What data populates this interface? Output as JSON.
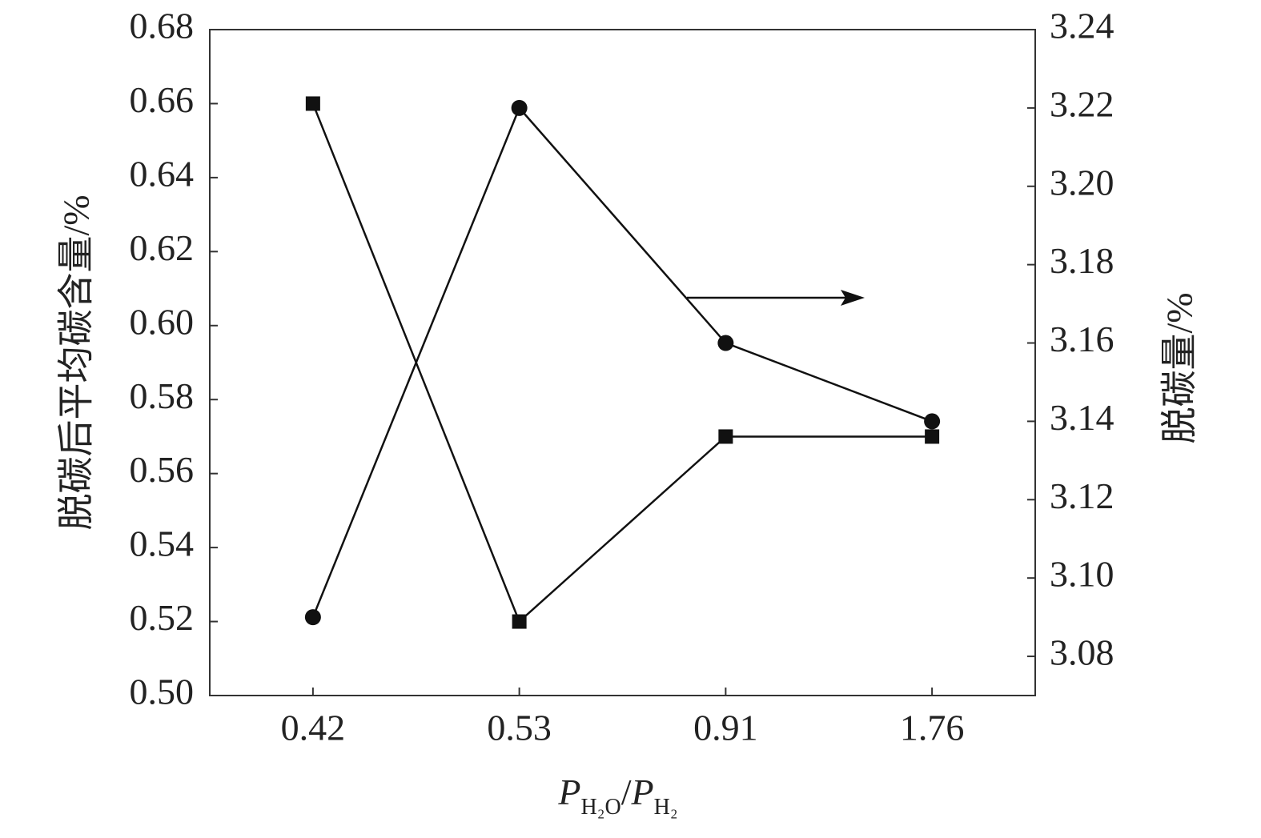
{
  "chart_data": {
    "type": "line",
    "categories": [
      "0.42",
      "0.53",
      "0.91",
      "1.76"
    ],
    "xlabel": [
      "P",
      "H₂O",
      "/",
      "P",
      "H₂"
    ],
    "ylabel": "脱碳后平均碳含量/%",
    "y2label": "脱碳量/%",
    "ylim": [
      0.5,
      0.68
    ],
    "yticks": [
      {
        "value": 0.5,
        "label": "0.50"
      },
      0.52,
      0.54,
      0.56,
      0.58,
      {
        "value": 0.6,
        "label": "0.60"
      },
      0.62,
      0.64,
      0.66,
      0.68
    ],
    "y2lim": [
      3.07,
      3.24
    ],
    "y2ticks": [
      3.08,
      {
        "value": 3.1,
        "label": "3.10"
      },
      3.12,
      3.14,
      3.16,
      3.18,
      {
        "value": 3.2,
        "label": "3.20"
      },
      3.22,
      3.24
    ],
    "series": [
      {
        "color": "#111111",
        "marker": "square",
        "values": [
          0.66,
          0.52,
          0.57,
          0.57
        ]
      },
      {
        "color": "#111111",
        "marker": "circle",
        "axis": "y2",
        "values": [
          3.09,
          3.22,
          3.16,
          3.14
        ]
      }
    ]
  }
}
